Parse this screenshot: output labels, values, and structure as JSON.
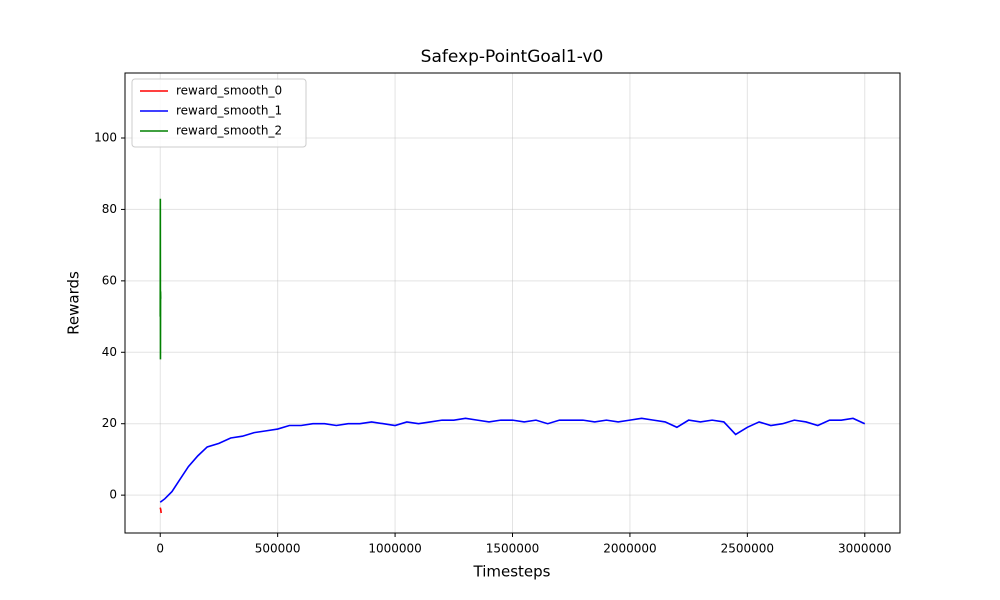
{
  "chart_data": {
    "type": "line",
    "title": "Safexp-PointGoal1-v0",
    "x_label": "Timesteps",
    "y_label": "Rewards",
    "xlim": [
      -150000,
      3150000
    ],
    "ylim": [
      -10.6,
      118.2
    ],
    "xticks": [
      0,
      500000,
      1000000,
      1500000,
      2000000,
      2500000,
      3000000
    ],
    "yticks": [
      0,
      20,
      40,
      60,
      80,
      100
    ],
    "grid": true,
    "legend": "upper left",
    "series": [
      {
        "name": "reward_smooth_0",
        "color": "#ff0000",
        "x": [
          0,
          2000,
          4000
        ],
        "values": [
          -3.5,
          -4,
          -5
        ]
      },
      {
        "name": "reward_smooth_1",
        "color": "#0000ff",
        "x": [
          0,
          20000,
          50000,
          80000,
          120000,
          160000,
          200000,
          250000,
          300000,
          350000,
          400000,
          450000,
          500000,
          550000,
          600000,
          650000,
          700000,
          750000,
          800000,
          850000,
          900000,
          950000,
          1000000,
          1050000,
          1100000,
          1150000,
          1200000,
          1250000,
          1300000,
          1350000,
          1400000,
          1450000,
          1500000,
          1550000,
          1600000,
          1650000,
          1700000,
          1750000,
          1800000,
          1850000,
          1900000,
          1950000,
          2000000,
          2050000,
          2100000,
          2150000,
          2200000,
          2250000,
          2300000,
          2350000,
          2400000,
          2450000,
          2500000,
          2550000,
          2600000,
          2650000,
          2700000,
          2750000,
          2800000,
          2850000,
          2900000,
          2950000,
          3000000
        ],
        "values": [
          -2,
          -1,
          1,
          4,
          8,
          11,
          13.5,
          14.5,
          16,
          16.5,
          17.5,
          18,
          18.5,
          19.5,
          19.5,
          20,
          20,
          19.5,
          20,
          20,
          20.5,
          20,
          19.5,
          20.5,
          20,
          20.5,
          21,
          21,
          21.5,
          21,
          20.5,
          21,
          21,
          20.5,
          21,
          20,
          21,
          21,
          21,
          20.5,
          21,
          20.5,
          21,
          21.5,
          21,
          20.5,
          19,
          21,
          20.5,
          21,
          20.5,
          17,
          19,
          20.5,
          19.5,
          20,
          21,
          20.5,
          19.5,
          21,
          21,
          21.5,
          20
        ]
      },
      {
        "name": "reward_smooth_2",
        "color": "#008000",
        "x": [
          0,
          500,
          1000,
          1500,
          2000
        ],
        "values": [
          50,
          83,
          38,
          57,
          55
        ]
      }
    ]
  }
}
